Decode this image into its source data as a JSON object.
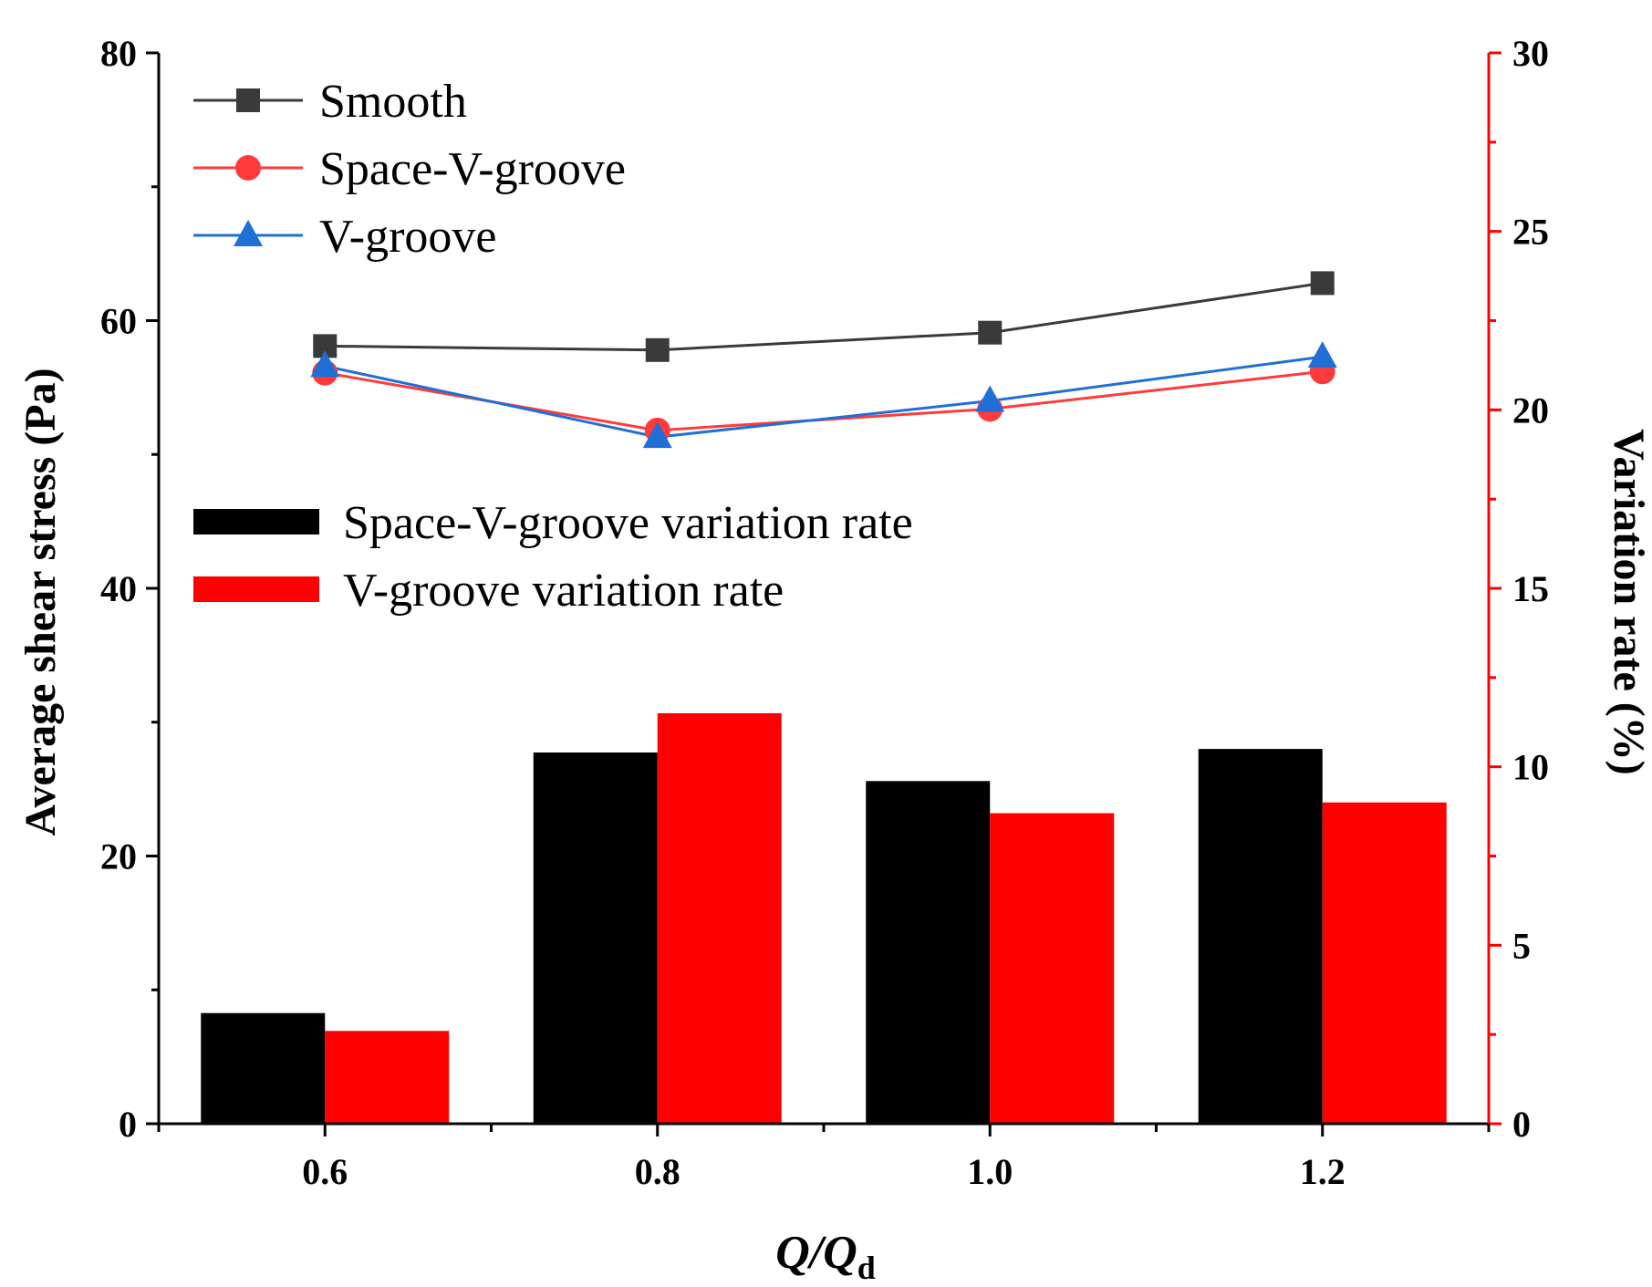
{
  "chart_data": {
    "type": "bar+line",
    "categories": [
      "0.6",
      "0.8",
      "1.0",
      "1.2"
    ],
    "x": [
      0.6,
      0.8,
      1.0,
      1.2
    ],
    "xlabel": {
      "main": "Q/Q",
      "subscript": "d"
    },
    "ylabel_left": "Average shear stress (Pa)",
    "ylabel_right": "Variation rate (%)",
    "ylim_left": [
      0,
      80
    ],
    "ylim_right": [
      0,
      30
    ],
    "xlim": [
      0.5,
      1.3
    ],
    "yticks_left": [
      "0",
      "20",
      "40",
      "60",
      "80"
    ],
    "yticks_right": [
      "0",
      "5",
      "10",
      "15",
      "20",
      "25",
      "30"
    ],
    "xticks": [
      "0.6",
      "0.8",
      "1.0",
      "1.2"
    ],
    "line_series": [
      {
        "name": "Smooth",
        "axis": "left",
        "color": "#3a3a3a",
        "marker": "square",
        "values": [
          58.1,
          57.8,
          59.1,
          62.8
        ]
      },
      {
        "name": "Space-V-groove",
        "axis": "left",
        "color": "#ff3b3b",
        "marker": "circle",
        "values": [
          56.1,
          51.8,
          53.4,
          56.2
        ]
      },
      {
        "name": "V-groove",
        "axis": "left",
        "color": "#1f6fd6",
        "marker": "triangle",
        "values": [
          56.6,
          51.3,
          54.0,
          57.3
        ]
      }
    ],
    "bar_series": [
      {
        "name": "Space-V-groove variation rate",
        "axis": "right",
        "color": "#000000",
        "values": [
          3.1,
          10.4,
          9.6,
          10.5
        ]
      },
      {
        "name": "V-groove variation rate",
        "axis": "right",
        "color": "#ff0000",
        "values": [
          2.6,
          11.5,
          8.7,
          9.0
        ]
      }
    ],
    "right_axis_color": "#ff0000",
    "legend_position": "top-left"
  }
}
